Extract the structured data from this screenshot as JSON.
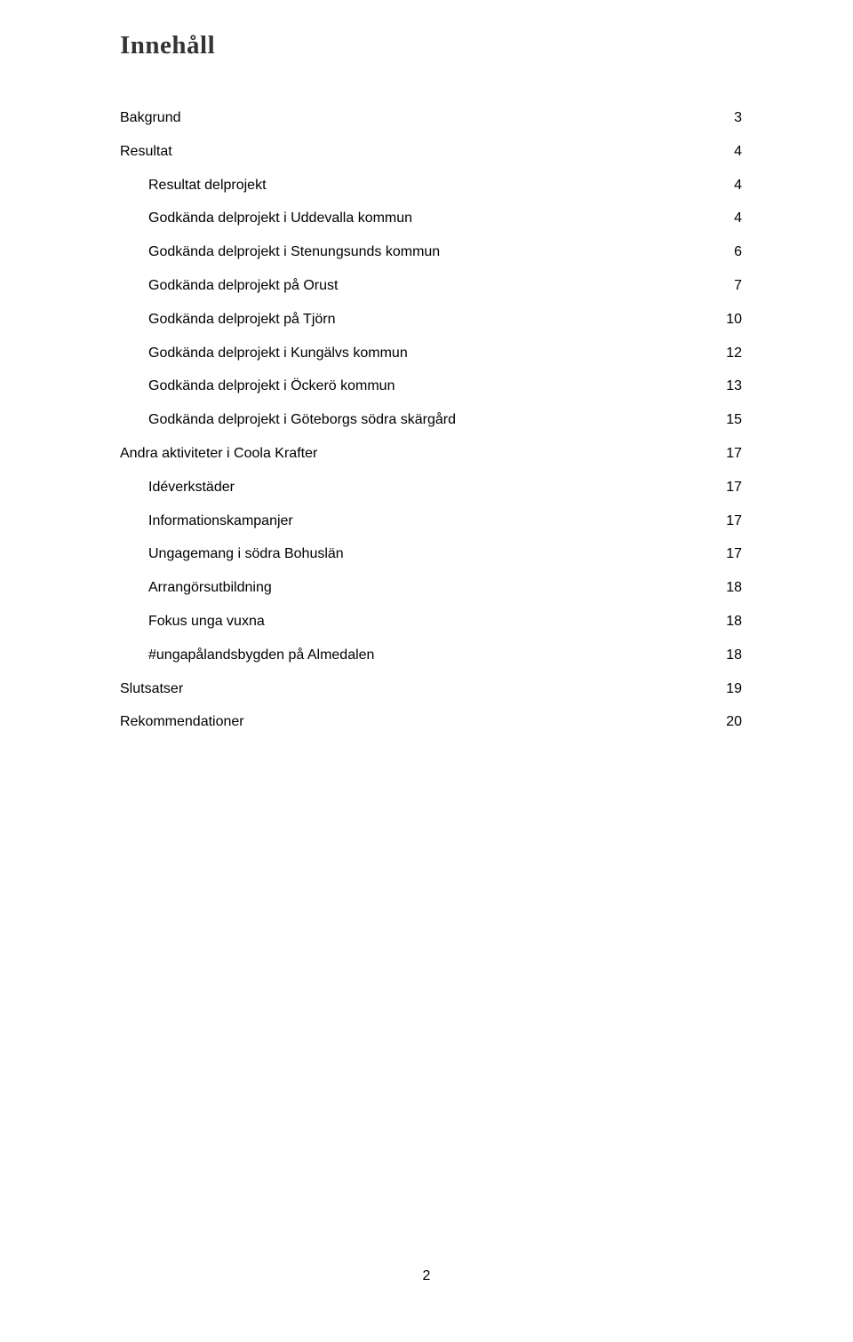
{
  "title": "Innehåll",
  "page_number": "2",
  "colors": {
    "background": "#ffffff",
    "title_color": "#333333",
    "text_color": "#000000"
  },
  "typography": {
    "title_font": "Georgia serif",
    "title_size_pt": 22,
    "title_weight": "bold",
    "body_font": "Trebuchet MS sans-serif",
    "body_size_pt": 12,
    "line_spacing_factor": 2.0
  },
  "toc": {
    "entries": [
      {
        "label": "Bakgrund",
        "page": "3",
        "indent": 0
      },
      {
        "label": "Resultat",
        "page": "4",
        "indent": 0
      },
      {
        "label": "Resultat delprojekt",
        "page": "4",
        "indent": 1
      },
      {
        "label": "Godkända delprojekt i Uddevalla kommun",
        "page": "4",
        "indent": 1
      },
      {
        "label": "Godkända delprojekt i Stenungsunds kommun",
        "page": "6",
        "indent": 1
      },
      {
        "label": "Godkända delprojekt på Orust",
        "page": "7",
        "indent": 1
      },
      {
        "label": "Godkända delprojekt på Tjörn",
        "page": "10",
        "indent": 1
      },
      {
        "label": "Godkända delprojekt i Kungälvs kommun",
        "page": "12",
        "indent": 1
      },
      {
        "label": "Godkända delprojekt i Öckerö kommun",
        "page": "13",
        "indent": 1
      },
      {
        "label": "Godkända delprojekt i Göteborgs södra skärgård",
        "page": "15",
        "indent": 1
      },
      {
        "label": "Andra aktiviteter i Coola Krafter",
        "page": "17",
        "indent": 0
      },
      {
        "label": "Idéverkstäder",
        "page": "17",
        "indent": 1
      },
      {
        "label": "Informationskampanjer",
        "page": "17",
        "indent": 1
      },
      {
        "label": "Ungagemang i södra Bohuslän",
        "page": "17",
        "indent": 1
      },
      {
        "label": "Arrangörsutbildning",
        "page": "18",
        "indent": 1
      },
      {
        "label": "Fokus unga vuxna",
        "page": "18",
        "indent": 1
      },
      {
        "label": "#ungapålandsbygden på Almedalen",
        "page": "18",
        "indent": 1
      },
      {
        "label": "Slutsatser",
        "page": "19",
        "indent": 0
      },
      {
        "label": "Rekommendationer",
        "page": "20",
        "indent": 0
      }
    ]
  }
}
